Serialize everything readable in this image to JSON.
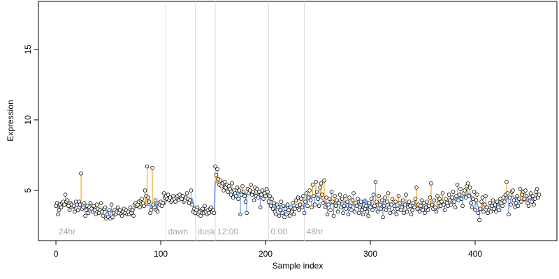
{
  "chart_data": {
    "type": "scatter",
    "x_label": "Sample index",
    "y_label": "Expression",
    "xlim": [
      -16.7,
      478
    ],
    "ylim": [
      1.44,
      18.4
    ],
    "xticks": [
      0,
      100,
      200,
      300,
      400
    ],
    "yticks": [
      5,
      10,
      15
    ],
    "point_color": "#000000",
    "above_color": "#f5a623",
    "below_color": "#6495ed",
    "fit_color": "#6495ed",
    "divider_color": "#dddddd",
    "dividers": [
      105,
      133,
      152,
      203,
      237
    ],
    "annotations": [
      "24hr",
      "dawn",
      "dusk",
      "12:00",
      "0:00",
      "48hr"
    ],
    "values": [
      3.9,
      4.1,
      3.3,
      3.6,
      4.0,
      3.8,
      4.1,
      4.2,
      4.0,
      4.7,
      4.2,
      4.3,
      3.9,
      3.6,
      4.1,
      4.0,
      3.8,
      3.9,
      3.5,
      4.2,
      4.0,
      3.6,
      4.2,
      4.0,
      6.2,
      3.7,
      3.8,
      4.1,
      3.2,
      3.6,
      3.9,
      3.4,
      3.8,
      4.1,
      3.7,
      3.5,
      3.9,
      3.6,
      3.3,
      4.0,
      3.7,
      3.4,
      3.6,
      4.1,
      3.5,
      3.2,
      3.7,
      3.8,
      3.0,
      3.3,
      3.1,
      3.6,
      3.0,
      4.0,
      3.1,
      3.4,
      3.6,
      3.3,
      3.5,
      3.8,
      3.4,
      3.6,
      3.3,
      3.2,
      3.5,
      3.7,
      3.4,
      3.6,
      3.3,
      3.5,
      3.3,
      3.8,
      3.4,
      3.6,
      3.2,
      4.0,
      4.1,
      3.9,
      4.0,
      4.2,
      3.8,
      4.3,
      4.4,
      4.1,
      3.9,
      5.0,
      4.6,
      6.7,
      4.5,
      4.2,
      3.4,
      3.6,
      6.6,
      4.0,
      3.8,
      4.3,
      3.6,
      3.5,
      4.1,
      4.0,
      4.2,
      3.9,
      4.1,
      4.8,
      4.5,
      4.6,
      4.4,
      4.7,
      4.3,
      4.5,
      4.2,
      4.3,
      4.6,
      4.4,
      4.2,
      4.5,
      4.6,
      4.3,
      4.7,
      4.5,
      4.4,
      4.6,
      4.2,
      4.3,
      4.5,
      4.8,
      4.4,
      4.1,
      4.3,
      5.0,
      4.0,
      3.5,
      3.7,
      3.4,
      3.6,
      3.8,
      3.3,
      3.5,
      3.2,
      3.6,
      3.7,
      3.4,
      3.9,
      3.5,
      3.3,
      3.6,
      3.4,
      3.7,
      3.8,
      3.5,
      3.6,
      3.4,
      6.7,
      6.1,
      6.5,
      5.8,
      5.4,
      5.7,
      5.3,
      5.5,
      5.0,
      5.6,
      5.2,
      5.4,
      4.9,
      5.3,
      5.1,
      4.7,
      5.5,
      4.5,
      5.0,
      4.8,
      4.6,
      5.2,
      4.4,
      5.0,
      3.3,
      4.7,
      5.3,
      4.9,
      4.6,
      4.2,
      3.4,
      5.1,
      4.8,
      5.0,
      5.4,
      4.7,
      4.9,
      4.3,
      5.2,
      4.6,
      5.1,
      4.5,
      4.9,
      3.8,
      4.7,
      5.0,
      4.4,
      4.8,
      4.6,
      5.1,
      4.9,
      4.2,
      4.6,
      3.9,
      4.4,
      3.7,
      4.1,
      3.5,
      3.3,
      4.0,
      3.8,
      3.2,
      3.6,
      4.2,
      3.4,
      3.9,
      3.1,
      3.7,
      3.3,
      4.0,
      3.6,
      3.2,
      3.8,
      3.5,
      4.1,
      3.3,
      3.7,
      4.3,
      3.9,
      4.5,
      3.6,
      4.0,
      4.4,
      3.8,
      4.6,
      3.4,
      4.2,
      4.8,
      3.9,
      4.5,
      5.0,
      4.3,
      3.8,
      5.4,
      4.6,
      4.0,
      5.6,
      4.9,
      4.4,
      3.9,
      5.2,
      5.5,
      4.7,
      4.1,
      5.7,
      3.8,
      4.5,
      3.3,
      4.0,
      4.4,
      3.6,
      4.9,
      4.2,
      3.2,
      4.6,
      3.9,
      4.3,
      3.5,
      4.1,
      4.7,
      3.8,
      4.4,
      3.4,
      3.9,
      4.6,
      3.7,
      4.2,
      3.3,
      4.5,
      3.9,
      3.6,
      4.3,
      4.8,
      3.5,
      4.1,
      3.9,
      4.4,
      3.4,
      3.8,
      4.2,
      3.6,
      3.3,
      4.0,
      3.7,
      3.9,
      3.5,
      3.2,
      4.1,
      3.8,
      4.4,
      3.6,
      4.7,
      3.9,
      5.6,
      4.2,
      3.5,
      4.6,
      4.0,
      3.7,
      4.3,
      3.1,
      3.9,
      4.5,
      3.6,
      4.2,
      4.8,
      3.8,
      3.4,
      4.0,
      4.4,
      3.5,
      3.9,
      4.2,
      3.3,
      3.7,
      4.6,
      4.1,
      3.6,
      3.8,
      4.3,
      3.4,
      4.0,
      4.7,
      3.5,
      3.8,
      4.2,
      3.9,
      3.3,
      3.6,
      4.1,
      3.8,
      4.4,
      5.2,
      3.7,
      4.0,
      3.5,
      3.9,
      4.3,
      3.6,
      4.1,
      3.4,
      3.8,
      4.2,
      3.6,
      3.9,
      4.5,
      5.5,
      4.0,
      3.7,
      4.3,
      3.8,
      3.5,
      4.6,
      4.1,
      4.4,
      3.9,
      4.2,
      4.8,
      4.0,
      3.6,
      4.4,
      4.1,
      3.9,
      4.7,
      4.3,
      4.0,
      4.5,
      4.9,
      4.2,
      3.8,
      4.6,
      5.4,
      4.3,
      4.7,
      5.1,
      4.4,
      3.9,
      4.8,
      5.0,
      4.5,
      5.3,
      5.5,
      4.6,
      5.2,
      4.1,
      3.8,
      4.4,
      4.9,
      3.6,
      4.3,
      4.7,
      3.4,
      2.9,
      3.7,
      4.2,
      4.5,
      3.5,
      4.0,
      4.6,
      3.8,
      3.4,
      3.6,
      4.1,
      3.5,
      3.9,
      4.3,
      3.7,
      4.0,
      3.5,
      4.2,
      3.8,
      3.6,
      4.4,
      4.1,
      3.9,
      4.5,
      4.2,
      4.7,
      5.6,
      4.8,
      3.3,
      4.5,
      4.0,
      4.9,
      5.0,
      4.3,
      3.8,
      4.1,
      4.6,
      3.9,
      4.4,
      5.1,
      4.2,
      4.7,
      4.9,
      4.4,
      5.0,
      4.6,
      4.1,
      3.9,
      4.5,
      4.8,
      4.2,
      4.6,
      4.0,
      4.4,
      4.9,
      5.1,
      4.5,
      4.7
    ],
    "fit": {
      "x": [
        0,
        20,
        40,
        60,
        74,
        76,
        104,
        106,
        130,
        132,
        151,
        152,
        160,
        175,
        202,
        203,
        236,
        240,
        250,
        260,
        275,
        285,
        295,
        305,
        315,
        325,
        335,
        345,
        355,
        365,
        375,
        385,
        395,
        405,
        415,
        425,
        435,
        445,
        461
      ],
      "values": [
        3.9,
        3.9,
        3.7,
        3.4,
        3.5,
        3.9,
        4.0,
        4.4,
        4.4,
        3.7,
        3.5,
        5.6,
        5.3,
        4.8,
        4.7,
        4.0,
        3.8,
        4.6,
        4.6,
        4.0,
        4.2,
        3.9,
        4.4,
        3.7,
        4.3,
        3.8,
        4.1,
        3.6,
        4.0,
        3.7,
        4.3,
        4.5,
        4.8,
        3.6,
        3.9,
        4.1,
        4.6,
        4.2,
        4.6
      ]
    }
  }
}
